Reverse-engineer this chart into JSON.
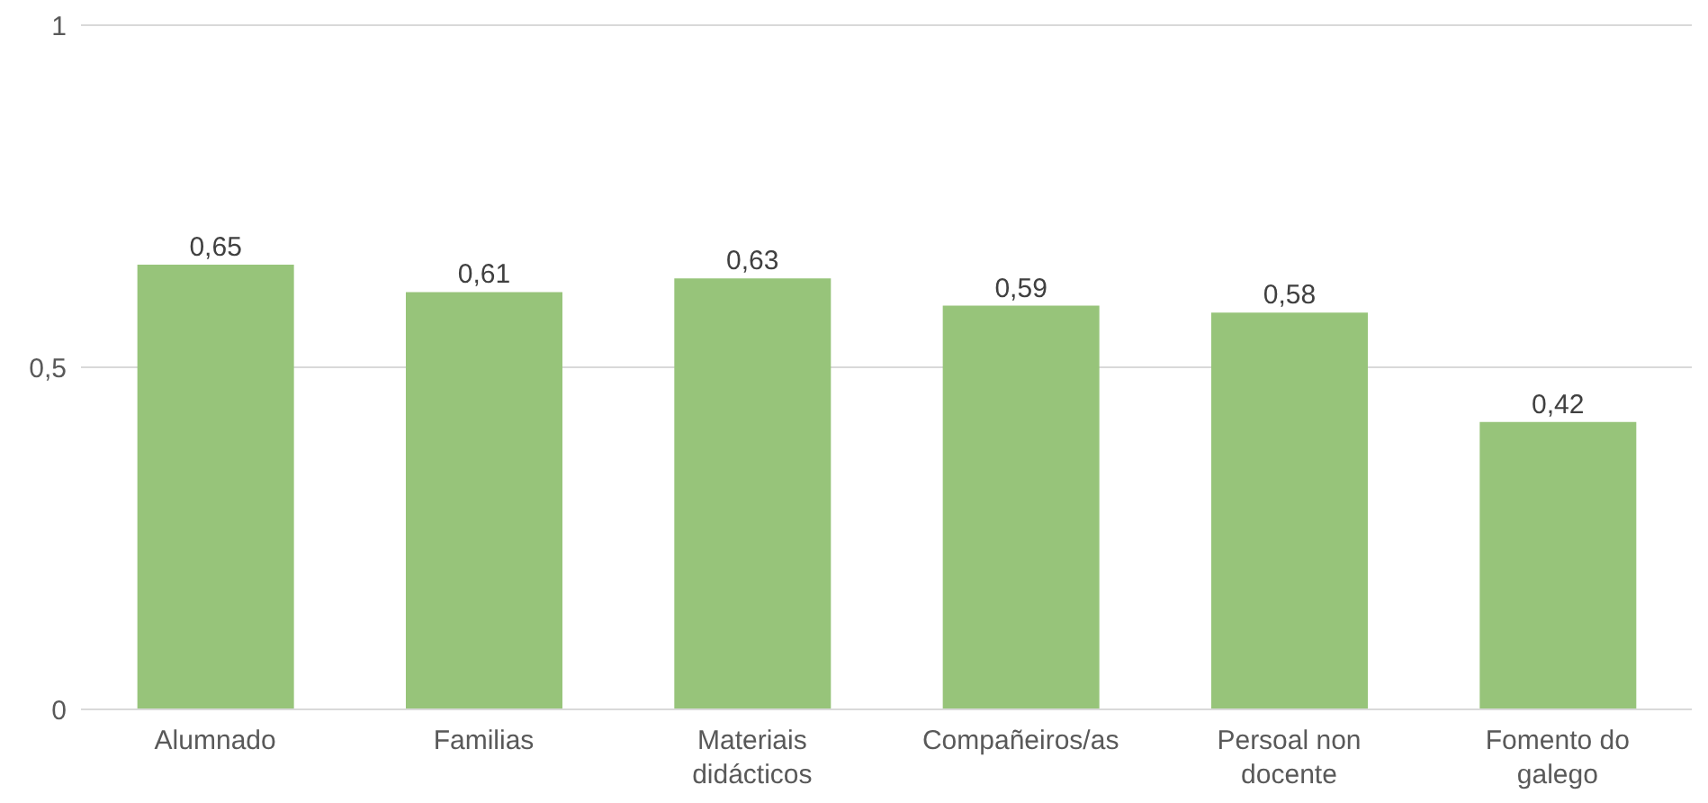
{
  "chart_data": {
    "type": "bar",
    "categories": [
      "Alumnado",
      "Familias",
      "Materiais didácticos",
      "Compañeiros/as",
      "Persoal non docente",
      "Fomento do galego"
    ],
    "values": [
      0.65,
      0.61,
      0.63,
      0.59,
      0.58,
      0.42
    ],
    "value_labels": [
      "0,65",
      "0,61",
      "0,63",
      "0,59",
      "0,58",
      "0,42"
    ],
    "color": "#97c47a",
    "ylim": [
      0,
      1
    ],
    "yticks": [
      {
        "value": 0,
        "label": "0"
      },
      {
        "value": 0.5,
        "label": "0,5"
      },
      {
        "value": 1,
        "label": "1"
      }
    ],
    "grid": "y"
  }
}
